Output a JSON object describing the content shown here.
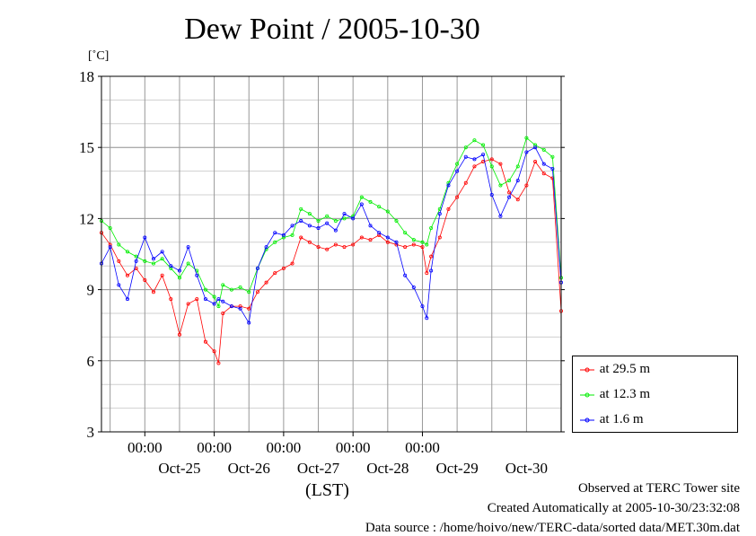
{
  "chart_data": {
    "type": "line",
    "title": "Dew Point / 2005-10-30",
    "ylabel": "[˚C]",
    "xlabel": "(LST)",
    "ylim": [
      3,
      18
    ],
    "yticks": [
      3,
      6,
      9,
      12,
      15,
      18
    ],
    "xlim": [
      "2005-10-24T09:00",
      "2005-10-30T23:59"
    ],
    "xtick_time_label": "00:00",
    "xtick_times": [
      "2005-10-25T00:00",
      "2005-10-26T00:00",
      "2005-10-27T00:00",
      "2005-10-28T00:00",
      "2005-10-29T00:00"
    ],
    "date_labels": [
      {
        "date": "2005-10-25T12:00",
        "label": "Oct-25"
      },
      {
        "date": "2005-10-26T12:00",
        "label": "Oct-26"
      },
      {
        "date": "2005-10-27T12:00",
        "label": "Oct-27"
      },
      {
        "date": "2005-10-28T12:00",
        "label": "Oct-28"
      },
      {
        "date": "2005-10-29T12:00",
        "label": "Oct-29"
      },
      {
        "date": "2005-10-30T12:00",
        "label": "Oct-30"
      }
    ],
    "grid": true,
    "legend_position": "bottom-right",
    "series": [
      {
        "name": "at 29.5 m",
        "color": "#ff0000",
        "points": [
          [
            "2005-10-24T09:00",
            11.4
          ],
          [
            "2005-10-24T12:00",
            10.9
          ],
          [
            "2005-10-24T15:00",
            10.2
          ],
          [
            "2005-10-24T18:00",
            9.6
          ],
          [
            "2005-10-24T21:00",
            9.9
          ],
          [
            "2005-10-25T00:00",
            9.4
          ],
          [
            "2005-10-25T03:00",
            8.9
          ],
          [
            "2005-10-25T06:00",
            9.6
          ],
          [
            "2005-10-25T09:00",
            8.6
          ],
          [
            "2005-10-25T12:00",
            7.1
          ],
          [
            "2005-10-25T15:00",
            8.4
          ],
          [
            "2005-10-25T18:00",
            8.6
          ],
          [
            "2005-10-25T21:00",
            6.8
          ],
          [
            "2005-10-26T00:00",
            6.4
          ],
          [
            "2005-10-26T01:30",
            5.9
          ],
          [
            "2005-10-26T03:00",
            8.0
          ],
          [
            "2005-10-26T06:00",
            8.3
          ],
          [
            "2005-10-26T09:00",
            8.3
          ],
          [
            "2005-10-26T12:00",
            8.2
          ],
          [
            "2005-10-26T15:00",
            8.9
          ],
          [
            "2005-10-26T18:00",
            9.3
          ],
          [
            "2005-10-26T21:00",
            9.7
          ],
          [
            "2005-10-27T00:00",
            9.9
          ],
          [
            "2005-10-27T03:00",
            10.1
          ],
          [
            "2005-10-27T06:00",
            11.2
          ],
          [
            "2005-10-27T09:00",
            11.0
          ],
          [
            "2005-10-27T12:00",
            10.8
          ],
          [
            "2005-10-27T15:00",
            10.7
          ],
          [
            "2005-10-27T18:00",
            10.9
          ],
          [
            "2005-10-27T21:00",
            10.8
          ],
          [
            "2005-10-28T00:00",
            10.9
          ],
          [
            "2005-10-28T03:00",
            11.2
          ],
          [
            "2005-10-28T06:00",
            11.1
          ],
          [
            "2005-10-28T09:00",
            11.3
          ],
          [
            "2005-10-28T12:00",
            11.0
          ],
          [
            "2005-10-28T15:00",
            10.9
          ],
          [
            "2005-10-28T18:00",
            10.8
          ],
          [
            "2005-10-28T21:00",
            10.9
          ],
          [
            "2005-10-29T00:00",
            10.8
          ],
          [
            "2005-10-29T01:30",
            9.7
          ],
          [
            "2005-10-29T03:00",
            10.4
          ],
          [
            "2005-10-29T06:00",
            11.2
          ],
          [
            "2005-10-29T09:00",
            12.4
          ],
          [
            "2005-10-29T12:00",
            12.9
          ],
          [
            "2005-10-29T15:00",
            13.5
          ],
          [
            "2005-10-29T18:00",
            14.2
          ],
          [
            "2005-10-29T21:00",
            14.4
          ],
          [
            "2005-10-30T00:00",
            14.5
          ],
          [
            "2005-10-30T03:00",
            14.3
          ],
          [
            "2005-10-30T06:00",
            13.1
          ],
          [
            "2005-10-30T09:00",
            12.8
          ],
          [
            "2005-10-30T12:00",
            13.4
          ],
          [
            "2005-10-30T15:00",
            14.4
          ],
          [
            "2005-10-30T18:00",
            13.9
          ],
          [
            "2005-10-30T21:00",
            13.7
          ],
          [
            "2005-10-30T23:59",
            8.1
          ]
        ]
      },
      {
        "name": "at 12.3 m",
        "color": "#00ee00",
        "points": [
          [
            "2005-10-24T09:00",
            11.9
          ],
          [
            "2005-10-24T12:00",
            11.6
          ],
          [
            "2005-10-24T15:00",
            10.9
          ],
          [
            "2005-10-24T18:00",
            10.6
          ],
          [
            "2005-10-24T21:00",
            10.4
          ],
          [
            "2005-10-25T00:00",
            10.2
          ],
          [
            "2005-10-25T03:00",
            10.1
          ],
          [
            "2005-10-25T06:00",
            10.3
          ],
          [
            "2005-10-25T09:00",
            9.9
          ],
          [
            "2005-10-25T12:00",
            9.5
          ],
          [
            "2005-10-25T15:00",
            10.1
          ],
          [
            "2005-10-25T18:00",
            9.8
          ],
          [
            "2005-10-25T21:00",
            9.0
          ],
          [
            "2005-10-26T00:00",
            8.7
          ],
          [
            "2005-10-26T01:30",
            8.3
          ],
          [
            "2005-10-26T03:00",
            9.2
          ],
          [
            "2005-10-26T06:00",
            9.0
          ],
          [
            "2005-10-26T09:00",
            9.1
          ],
          [
            "2005-10-26T12:00",
            8.9
          ],
          [
            "2005-10-26T15:00",
            9.9
          ],
          [
            "2005-10-26T18:00",
            10.7
          ],
          [
            "2005-10-26T21:00",
            11.0
          ],
          [
            "2005-10-27T00:00",
            11.2
          ],
          [
            "2005-10-27T03:00",
            11.3
          ],
          [
            "2005-10-27T06:00",
            12.4
          ],
          [
            "2005-10-27T09:00",
            12.2
          ],
          [
            "2005-10-27T12:00",
            11.9
          ],
          [
            "2005-10-27T15:00",
            12.1
          ],
          [
            "2005-10-27T18:00",
            11.9
          ],
          [
            "2005-10-27T21:00",
            12.0
          ],
          [
            "2005-10-28T00:00",
            12.1
          ],
          [
            "2005-10-28T03:00",
            12.9
          ],
          [
            "2005-10-28T06:00",
            12.7
          ],
          [
            "2005-10-28T09:00",
            12.5
          ],
          [
            "2005-10-28T12:00",
            12.3
          ],
          [
            "2005-10-28T15:00",
            11.9
          ],
          [
            "2005-10-28T18:00",
            11.4
          ],
          [
            "2005-10-28T21:00",
            11.1
          ],
          [
            "2005-10-29T00:00",
            11.0
          ],
          [
            "2005-10-29T01:30",
            10.9
          ],
          [
            "2005-10-29T03:00",
            11.6
          ],
          [
            "2005-10-29T06:00",
            12.4
          ],
          [
            "2005-10-29T09:00",
            13.5
          ],
          [
            "2005-10-29T12:00",
            14.3
          ],
          [
            "2005-10-29T15:00",
            15.0
          ],
          [
            "2005-10-29T18:00",
            15.3
          ],
          [
            "2005-10-29T21:00",
            15.1
          ],
          [
            "2005-10-30T00:00",
            14.2
          ],
          [
            "2005-10-30T03:00",
            13.4
          ],
          [
            "2005-10-30T06:00",
            13.6
          ],
          [
            "2005-10-30T09:00",
            14.2
          ],
          [
            "2005-10-30T12:00",
            15.4
          ],
          [
            "2005-10-30T15:00",
            15.1
          ],
          [
            "2005-10-30T18:00",
            14.9
          ],
          [
            "2005-10-30T21:00",
            14.6
          ],
          [
            "2005-10-30T23:59",
            9.5
          ]
        ]
      },
      {
        "name": "at 1.6 m",
        "color": "#0000ff",
        "points": [
          [
            "2005-10-24T09:00",
            10.1
          ],
          [
            "2005-10-24T12:00",
            10.8
          ],
          [
            "2005-10-24T15:00",
            9.2
          ],
          [
            "2005-10-24T18:00",
            8.6
          ],
          [
            "2005-10-24T21:00",
            10.2
          ],
          [
            "2005-10-25T00:00",
            11.2
          ],
          [
            "2005-10-25T03:00",
            10.3
          ],
          [
            "2005-10-25T06:00",
            10.6
          ],
          [
            "2005-10-25T09:00",
            10.0
          ],
          [
            "2005-10-25T12:00",
            9.8
          ],
          [
            "2005-10-25T15:00",
            10.8
          ],
          [
            "2005-10-25T18:00",
            9.6
          ],
          [
            "2005-10-25T21:00",
            8.6
          ],
          [
            "2005-10-26T00:00",
            8.4
          ],
          [
            "2005-10-26T01:30",
            8.6
          ],
          [
            "2005-10-26T03:00",
            8.5
          ],
          [
            "2005-10-26T06:00",
            8.3
          ],
          [
            "2005-10-26T09:00",
            8.2
          ],
          [
            "2005-10-26T12:00",
            7.6
          ],
          [
            "2005-10-26T15:00",
            9.9
          ],
          [
            "2005-10-26T18:00",
            10.8
          ],
          [
            "2005-10-26T21:00",
            11.4
          ],
          [
            "2005-10-27T00:00",
            11.3
          ],
          [
            "2005-10-27T03:00",
            11.7
          ],
          [
            "2005-10-27T06:00",
            11.9
          ],
          [
            "2005-10-27T09:00",
            11.7
          ],
          [
            "2005-10-27T12:00",
            11.6
          ],
          [
            "2005-10-27T15:00",
            11.8
          ],
          [
            "2005-10-27T18:00",
            11.5
          ],
          [
            "2005-10-27T21:00",
            12.2
          ],
          [
            "2005-10-28T00:00",
            12.0
          ],
          [
            "2005-10-28T03:00",
            12.6
          ],
          [
            "2005-10-28T06:00",
            11.7
          ],
          [
            "2005-10-28T09:00",
            11.4
          ],
          [
            "2005-10-28T12:00",
            11.2
          ],
          [
            "2005-10-28T15:00",
            11.0
          ],
          [
            "2005-10-28T18:00",
            9.6
          ],
          [
            "2005-10-28T21:00",
            9.1
          ],
          [
            "2005-10-29T00:00",
            8.3
          ],
          [
            "2005-10-29T01:30",
            7.8
          ],
          [
            "2005-10-29T03:00",
            9.8
          ],
          [
            "2005-10-29T06:00",
            12.2
          ],
          [
            "2005-10-29T09:00",
            13.4
          ],
          [
            "2005-10-29T12:00",
            14.0
          ],
          [
            "2005-10-29T15:00",
            14.6
          ],
          [
            "2005-10-29T18:00",
            14.5
          ],
          [
            "2005-10-29T21:00",
            14.7
          ],
          [
            "2005-10-30T00:00",
            13.0
          ],
          [
            "2005-10-30T03:00",
            12.1
          ],
          [
            "2005-10-30T06:00",
            12.9
          ],
          [
            "2005-10-30T09:00",
            13.6
          ],
          [
            "2005-10-30T12:00",
            14.8
          ],
          [
            "2005-10-30T15:00",
            15.0
          ],
          [
            "2005-10-30T18:00",
            14.3
          ],
          [
            "2005-10-30T21:00",
            14.1
          ],
          [
            "2005-10-30T23:59",
            9.3
          ]
        ]
      }
    ]
  },
  "footer": {
    "line1": "Observed at TERC Tower site",
    "line2": "Created Automatically at 2005-10-30/23:32:08",
    "line3": "Data source : /home/hoivo/new/TERC-data/sorted  data/MET.30m.dat"
  }
}
